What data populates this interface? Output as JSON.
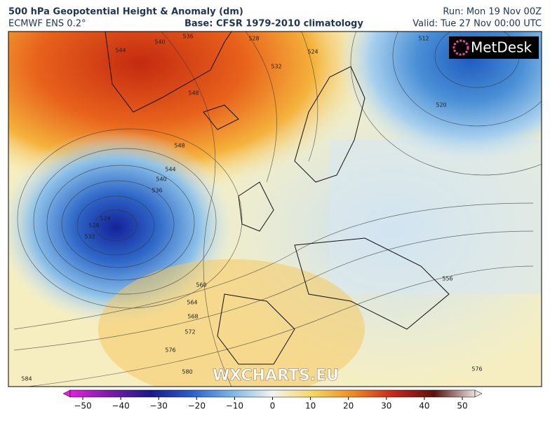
{
  "header": {
    "title": "500 hPa Geopotential Height & Anomaly (dm)",
    "model": "ECMWF ENS 0.2°",
    "base": "Base: CFSR 1979-2010 climatology",
    "run": "Run: Mon 19 Nov 00Z",
    "valid": "Valid: Tue 27 Nov 00:00 UTC"
  },
  "map": {
    "logo": "MetDesk",
    "watermark": "WXCHARTS.EU",
    "contour_labels": [
      536,
      528,
      524,
      532,
      544,
      540,
      548,
      512,
      520,
      548,
      544,
      540,
      536,
      524,
      528,
      532,
      560,
      564,
      568,
      572,
      576,
      580,
      584,
      576,
      556
    ]
  },
  "colorbar": {
    "ticks": [
      {
        "value": -50,
        "label": "−50"
      },
      {
        "value": -40,
        "label": "−40"
      },
      {
        "value": -30,
        "label": "−30"
      },
      {
        "value": -20,
        "label": "−20"
      },
      {
        "value": -10,
        "label": "−10"
      },
      0,
      10,
      20,
      30,
      40,
      50
    ]
  }
}
